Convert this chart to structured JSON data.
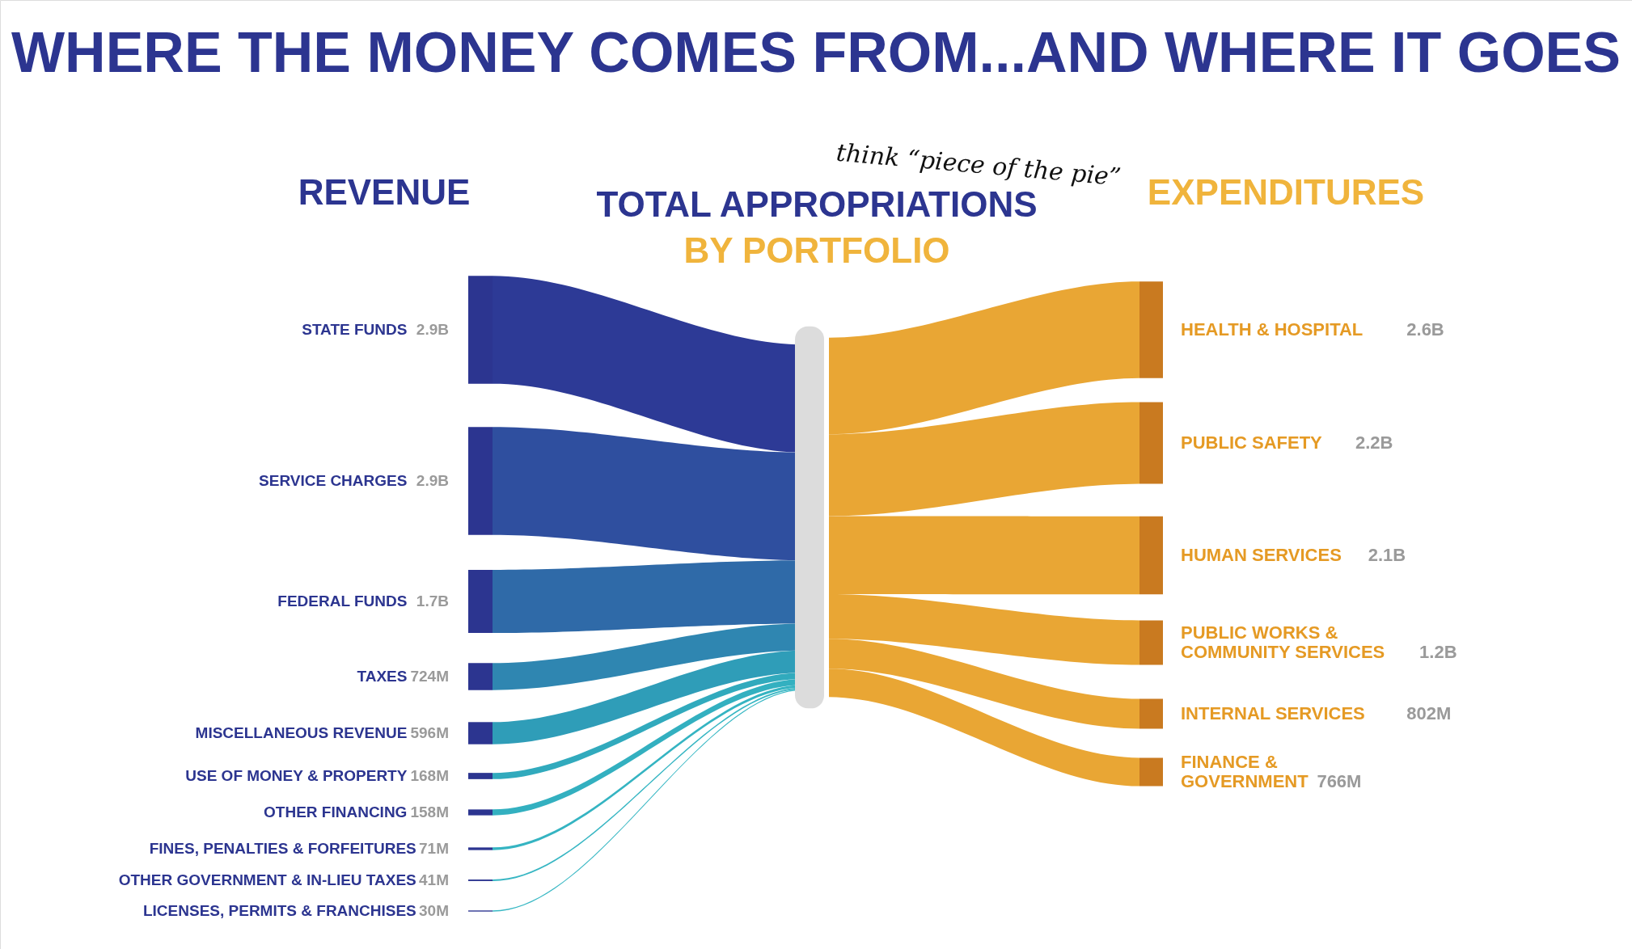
{
  "chart_data": {
    "type": "other",
    "title": "WHERE THE MONEY COMES FROM...AND WHERE IT GOES",
    "annotations": [
      "TOTAL APPROPRIATIONS",
      "BY PORTFOLIO",
      "think “piece of the pie”"
    ],
    "categories": [
      "STATE FUNDS",
      "SERVICE CHARGES",
      "FEDERAL FUNDS",
      "TAXES",
      "MISCELLANEOUS REVENUE",
      "USE OF  MONEY & PROPERTY",
      "OTHER FINANCING",
      "FINES, PENALTIES & FORFEITURES",
      "OTHER GOVERNMENT & IN-LIEU TAXES",
      "LICENSES, PERMITS & FRANCHISES",
      "HEALTH & HOSPITAL",
      "PUBLIC SAFETY",
      "HUMAN SERVICES",
      "PUBLIC WORKS & COMMUNITY SERVICES",
      "INTERNAL SERVICES",
      "FINANCE & GOVERNMENT"
    ],
    "series": [
      {
        "name": "REVENUE",
        "color": "#2c3590",
        "colors": [
          "#2d3a96",
          "#2f4f9f",
          "#2f6aa8",
          "#2f86b1",
          "#2f9db8",
          "#31aabd",
          "#33b0c0",
          "#35b4c2",
          "#37b6c3",
          "#39b8c4",
          null,
          null,
          null,
          null,
          null,
          null
        ],
        "values": [
          2900000000,
          2900000000,
          1700000000,
          724000000,
          596000000,
          168000000,
          158000000,
          71000000,
          41000000,
          30000000,
          null,
          null,
          null,
          null,
          null,
          null
        ],
        "value_labels": [
          "2.9B",
          "2.9B",
          "1.7B",
          "724M",
          "596M",
          "168M",
          "158M",
          "71M",
          "41M",
          "30M",
          null,
          null,
          null,
          null,
          null,
          null
        ]
      },
      {
        "name": "EXPENDITURES",
        "color": "#e9a634",
        "values": [
          null,
          null,
          null,
          null,
          null,
          null,
          null,
          null,
          null,
          null,
          2600000000,
          2200000000,
          2100000000,
          1200000000,
          802000000,
          766000000
        ],
        "value_labels": [
          null,
          null,
          null,
          null,
          null,
          null,
          null,
          null,
          null,
          null,
          "2.6B",
          "2.2B",
          "2.1B",
          "1.2B",
          "802M",
          "766M"
        ]
      }
    ]
  }
}
